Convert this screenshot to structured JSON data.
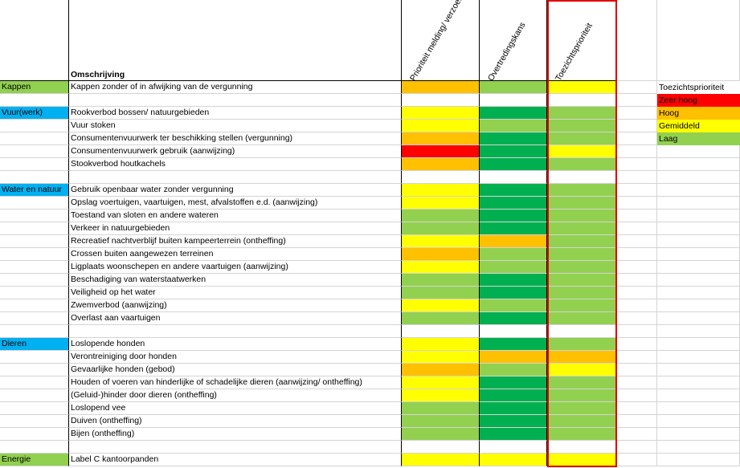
{
  "header": {
    "omschrijving": "Omschrijving",
    "col1": "Prioriteit melding/ verzoek",
    "col2": "Overtredingskans",
    "col3": "Toezichtsprioriteit"
  },
  "colors": {
    "zeer_hoog": "#ff0000",
    "hoog": "#ffc000",
    "gemiddeld": "#ffff00",
    "laag": "#92d050",
    "donkergroen": "#00b050",
    "categorie_groen": "#92d050",
    "categorie_blauw": "#00b0f0"
  },
  "legend": {
    "title": "Toezichtsprioriteit",
    "items": [
      {
        "label": "Zeer hoog",
        "color": "#ff0000"
      },
      {
        "label": "Hoog",
        "color": "#ffc000"
      },
      {
        "label": "Gemiddeld",
        "color": "#ffff00"
      },
      {
        "label": "Laag",
        "color": "#92d050"
      }
    ]
  },
  "rows": [
    {
      "cat": "Kappen",
      "catColor": "#92d050",
      "desc": "Kappen zonder of in afwijking van de vergunning",
      "c": [
        "#ffc000",
        "#92d050",
        "#ffff00"
      ]
    },
    {
      "cat": "",
      "catColor": "",
      "desc": "",
      "c": [
        "",
        "",
        ""
      ]
    },
    {
      "cat": "Vuur(werk)",
      "catColor": "#00b0f0",
      "desc": "Rookverbod bossen/ natuurgebieden",
      "c": [
        "#ffff00",
        "#00b050",
        "#92d050"
      ]
    },
    {
      "cat": "",
      "catColor": "",
      "desc": "Vuur stoken",
      "c": [
        "#ffff00",
        "#92d050",
        "#92d050"
      ]
    },
    {
      "cat": "",
      "catColor": "",
      "desc": "Consumentenvuurwerk ter beschikking stellen (vergunning)",
      "c": [
        "#ffc000",
        "#00b050",
        "#92d050"
      ]
    },
    {
      "cat": "",
      "catColor": "",
      "desc": "Consumentenvuurwerk gebruik (aanwijzing)",
      "c": [
        "#ff0000",
        "#00b050",
        "#ffff00"
      ]
    },
    {
      "cat": "",
      "catColor": "",
      "desc": "Stookverbod houtkachels",
      "c": [
        "#ffc000",
        "#00b050",
        "#92d050"
      ]
    },
    {
      "cat": "",
      "catColor": "",
      "desc": "",
      "c": [
        "",
        "",
        ""
      ]
    },
    {
      "cat": "Water en natuur",
      "catColor": "#00b0f0",
      "desc": "Gebruik openbaar water zonder vergunning",
      "c": [
        "#ffff00",
        "#00b050",
        "#92d050"
      ]
    },
    {
      "cat": "",
      "catColor": "",
      "desc": "Opslag voertuigen, vaartuigen, mest, afvalstoffen e.d. (aanwijzing)",
      "c": [
        "#ffff00",
        "#00b050",
        "#92d050"
      ]
    },
    {
      "cat": "",
      "catColor": "",
      "desc": "Toestand van sloten en andere wateren",
      "c": [
        "#92d050",
        "#00b050",
        "#92d050"
      ]
    },
    {
      "cat": "",
      "catColor": "",
      "desc": "Verkeer in natuurgebieden",
      "c": [
        "#92d050",
        "#00b050",
        "#92d050"
      ]
    },
    {
      "cat": "",
      "catColor": "",
      "desc": "Recreatief nachtverblijf buiten kampeerterrein (ontheffing)",
      "c": [
        "#ffff00",
        "#ffc000",
        "#92d050"
      ]
    },
    {
      "cat": "",
      "catColor": "",
      "desc": "Crossen buiten aangewezen terreinen",
      "c": [
        "#ffc000",
        "#92d050",
        "#92d050"
      ]
    },
    {
      "cat": "",
      "catColor": "",
      "desc": "Ligplaats woonschepen en andere vaartuigen (aanwijzing)",
      "c": [
        "#ffff00",
        "#92d050",
        "#92d050"
      ]
    },
    {
      "cat": "",
      "catColor": "",
      "desc": "Beschadiging van waterstaatwerken",
      "c": [
        "#92d050",
        "#00b050",
        "#92d050"
      ]
    },
    {
      "cat": "",
      "catColor": "",
      "desc": "Veiligheid op het water",
      "c": [
        "#92d050",
        "#00b050",
        "#92d050"
      ]
    },
    {
      "cat": "",
      "catColor": "",
      "desc": "Zwemverbod (aanwijzing)",
      "c": [
        "#ffff00",
        "#92d050",
        "#92d050"
      ]
    },
    {
      "cat": "",
      "catColor": "",
      "desc": "Overlast aan vaartuigen",
      "c": [
        "#92d050",
        "#00b050",
        "#92d050"
      ]
    },
    {
      "cat": "",
      "catColor": "",
      "desc": "",
      "c": [
        "",
        "",
        ""
      ]
    },
    {
      "cat": "Dieren",
      "catColor": "#00b0f0",
      "desc": "Loslopende honden",
      "c": [
        "#ffff00",
        "#00b050",
        "#92d050"
      ]
    },
    {
      "cat": "",
      "catColor": "",
      "desc": "Verontreiniging door honden",
      "c": [
        "#ffff00",
        "#ffc000",
        "#ffc000"
      ]
    },
    {
      "cat": "",
      "catColor": "",
      "desc": "Gevaarlijke honden (gebod)",
      "c": [
        "#ffc000",
        "#92d050",
        "#ffff00"
      ]
    },
    {
      "cat": "",
      "catColor": "",
      "desc": "Houden of voeren van hinderlijke of schadelijke dieren (aanwijzing/ ontheffing)",
      "c": [
        "#ffff00",
        "#00b050",
        "#92d050"
      ]
    },
    {
      "cat": "",
      "catColor": "",
      "desc": "(Geluid-)hinder door dieren (ontheffing)",
      "c": [
        "#ffff00",
        "#00b050",
        "#92d050"
      ]
    },
    {
      "cat": "",
      "catColor": "",
      "desc": "Loslopend vee",
      "c": [
        "#92d050",
        "#00b050",
        "#92d050"
      ]
    },
    {
      "cat": "",
      "catColor": "",
      "desc": "Duiven (ontheffing)",
      "c": [
        "#92d050",
        "#00b050",
        "#92d050"
      ]
    },
    {
      "cat": "",
      "catColor": "",
      "desc": "Bijen (ontheffing)",
      "c": [
        "#92d050",
        "#00b050",
        "#92d050"
      ]
    },
    {
      "cat": "",
      "catColor": "",
      "desc": "",
      "c": [
        "",
        "",
        ""
      ]
    },
    {
      "cat": "Energie",
      "catColor": "#92d050",
      "desc": "Label C kantoorpanden",
      "c": [
        "#ffff00",
        "#ffff00",
        "#ffff00"
      ]
    }
  ]
}
